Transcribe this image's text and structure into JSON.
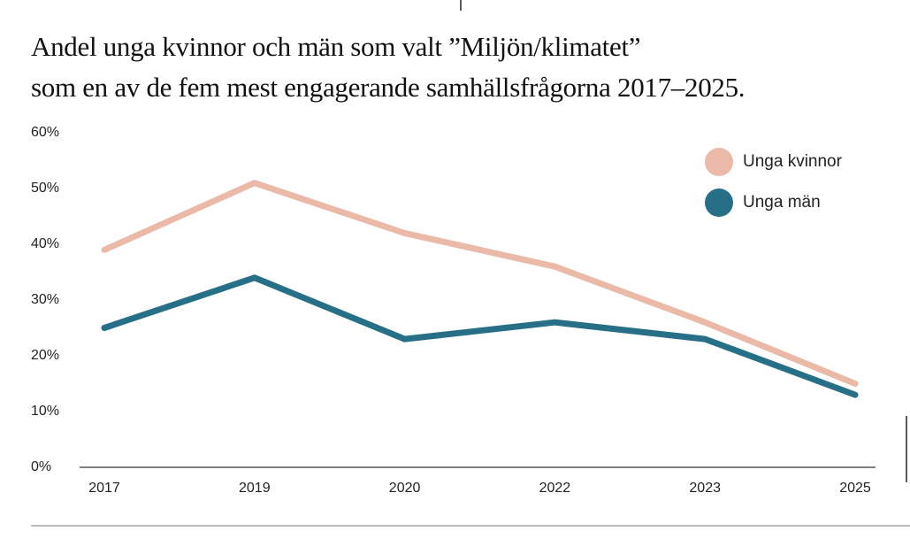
{
  "chart_data": {
    "type": "line",
    "title": "Andel unga kvinnor och män som valt ”Miljön/klimatet”\nsom en av de fem mest engagerande samhällsfrågorna 2017–2025.",
    "categories": [
      "2017",
      "2019",
      "2020",
      "2022",
      "2023",
      "2025"
    ],
    "series": [
      {
        "name": "Unga kvinnor",
        "color": "#eab9a8",
        "values": [
          39,
          51,
          42,
          36,
          26,
          15
        ]
      },
      {
        "name": "Unga män",
        "color": "#266f87",
        "values": [
          25,
          34,
          23,
          26,
          23,
          13
        ]
      }
    ],
    "ylim": [
      0,
      60
    ],
    "yticks": [
      {
        "value": 0,
        "label": "0%"
      },
      {
        "value": 10,
        "label": "10%"
      },
      {
        "value": 20,
        "label": "20%"
      },
      {
        "value": 30,
        "label": "30%"
      },
      {
        "value": 40,
        "label": "40%"
      },
      {
        "value": 50,
        "label": "50%"
      },
      {
        "value": 60,
        "label": "60%"
      }
    ],
    "grid": false,
    "legend": "top-right"
  }
}
